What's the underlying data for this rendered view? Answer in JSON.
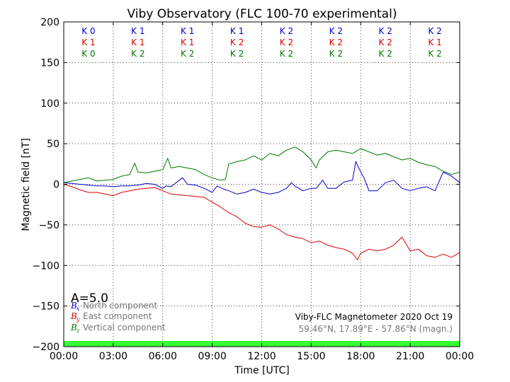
{
  "chart_data": {
    "type": "line",
    "title": "Viby Observatory (FLC 100-70 experimental)",
    "xlabel": "Time [UTC]",
    "ylabel": "Magnetic field [nT]",
    "xlim": [
      0,
      24
    ],
    "ylim": [
      -200,
      200
    ],
    "grid": true,
    "x_ticks": [
      0,
      3,
      6,
      9,
      12,
      15,
      18,
      21,
      24
    ],
    "x_tick_labels": [
      "00:00",
      "03:00",
      "06:00",
      "09:00",
      "12:00",
      "15:00",
      "18:00",
      "21:00",
      "00:00"
    ],
    "y_ticks": [
      200,
      150,
      100,
      50,
      0,
      -50,
      -100,
      -150,
      -200
    ],
    "y_tick_labels": [
      "200",
      "150",
      "100",
      "50",
      "0",
      "−50",
      "−100",
      "−150",
      "−200"
    ],
    "k_index_rows": [
      {
        "color": "#0000cc",
        "labels": [
          "K 0",
          "K 1",
          "K 1",
          "K 1",
          "K 2",
          "K 2",
          "K 2",
          "K 2"
        ]
      },
      {
        "color": "#dd0000",
        "labels": [
          "K 1",
          "K 1",
          "K 1",
          "K 2",
          "K 2",
          "K 2",
          "K 2",
          "K 1"
        ]
      },
      {
        "color": "#007700",
        "labels": [
          "K 0",
          "K 2",
          "K 2",
          "K 2",
          "K 2",
          "K 2",
          "K 2",
          "K 2"
        ]
      }
    ],
    "a_index": "A=5.0",
    "legend_position": "lower-left",
    "legend": [
      {
        "symbol": "B",
        "sub": "x",
        "label": "North component",
        "color": "#0000cc"
      },
      {
        "symbol": "B",
        "sub": "y",
        "label": "East component",
        "color": "#dd0000"
      },
      {
        "symbol": "B",
        "sub": "z",
        "label": "Vertical component",
        "color": "#007700"
      }
    ],
    "station": "Viby-FLC Magnetometer 2020 Oct 19",
    "coordinates": "59.46°N, 17.89°E - 57.86°N (magn.)",
    "activity_bar_color": "#33ff33",
    "series": [
      {
        "key": "bx",
        "color": "#0000cc",
        "x": [
          0,
          0.5,
          1,
          1.5,
          2,
          2.5,
          3,
          3.5,
          4,
          4.5,
          5,
          5.5,
          6,
          6.2,
          6.5,
          7,
          7.2,
          7.5,
          8,
          8.5,
          9,
          9.3,
          9.7,
          10,
          10.5,
          11,
          11.5,
          12,
          12.5,
          13,
          13.5,
          13.8,
          14,
          14.5,
          15,
          15.3,
          15.7,
          16,
          16.5,
          17,
          17.5,
          17.7,
          18,
          18.2,
          18.5,
          19,
          19.5,
          20,
          20.5,
          21,
          21.5,
          22,
          22.5,
          23,
          23.5,
          24
        ],
        "y": [
          2,
          1,
          0,
          -1,
          -2,
          -2,
          -3,
          -2,
          -2,
          -1,
          1,
          0,
          -5,
          -2,
          -3,
          5,
          8,
          0,
          -1,
          -5,
          -10,
          -2,
          -6,
          -8,
          -12,
          -10,
          -6,
          -10,
          -12,
          -10,
          -5,
          2,
          -2,
          -8,
          -5,
          -5,
          5,
          -5,
          -5,
          3,
          5,
          28,
          15,
          8,
          -8,
          -8,
          2,
          5,
          -5,
          -8,
          -5,
          -3,
          -8,
          15,
          10,
          2
        ]
      },
      {
        "key": "by",
        "color": "#dd0000",
        "x": [
          0,
          0.5,
          1,
          1.5,
          2,
          2.5,
          3,
          3.5,
          4,
          4.5,
          5,
          5.5,
          6,
          6.5,
          7,
          7.5,
          8,
          8.5,
          9,
          9.5,
          10,
          10.5,
          11,
          11.5,
          12,
          12.5,
          13,
          13.5,
          14,
          14.5,
          15,
          15.5,
          16,
          16.5,
          17,
          17.5,
          17.8,
          18,
          18.5,
          19,
          19.5,
          20,
          20.5,
          21,
          21.5,
          22,
          22.5,
          23,
          23.5,
          24
        ],
        "y": [
          0,
          -3,
          -7,
          -10,
          -10,
          -12,
          -14,
          -10,
          -8,
          -6,
          -5,
          -4,
          -8,
          -12,
          -13,
          -14,
          -15,
          -16,
          -22,
          -28,
          -35,
          -40,
          -48,
          -52,
          -53,
          -50,
          -55,
          -62,
          -65,
          -67,
          -72,
          -70,
          -75,
          -78,
          -80,
          -85,
          -93,
          -85,
          -80,
          -82,
          -80,
          -75,
          -65,
          -82,
          -80,
          -88,
          -90,
          -86,
          -90,
          -84
        ]
      },
      {
        "key": "bz",
        "color": "#007700",
        "x": [
          0,
          0.5,
          1,
          1.5,
          2,
          2.5,
          3,
          3.5,
          4,
          4.3,
          4.5,
          5,
          5.5,
          6,
          6.3,
          6.5,
          7,
          7.5,
          8,
          8.5,
          9,
          9.5,
          9.8,
          10,
          10.5,
          11,
          11.5,
          12,
          12.5,
          13,
          13.5,
          14,
          14.5,
          15,
          15.3,
          15.5,
          16,
          16.5,
          17,
          17.5,
          18,
          18.5,
          19,
          19.5,
          20,
          20.5,
          21,
          21.5,
          22,
          22.5,
          23,
          23.5,
          24
        ],
        "y": [
          2,
          4,
          6,
          8,
          4,
          5,
          6,
          10,
          12,
          26,
          15,
          14,
          16,
          18,
          32,
          20,
          22,
          20,
          18,
          12,
          8,
          5,
          6,
          25,
          28,
          30,
          35,
          30,
          38,
          35,
          42,
          46,
          40,
          30,
          20,
          30,
          40,
          42,
          40,
          38,
          44,
          40,
          36,
          38,
          34,
          30,
          32,
          27,
          24,
          22,
          16,
          12,
          15
        ]
      }
    ]
  }
}
